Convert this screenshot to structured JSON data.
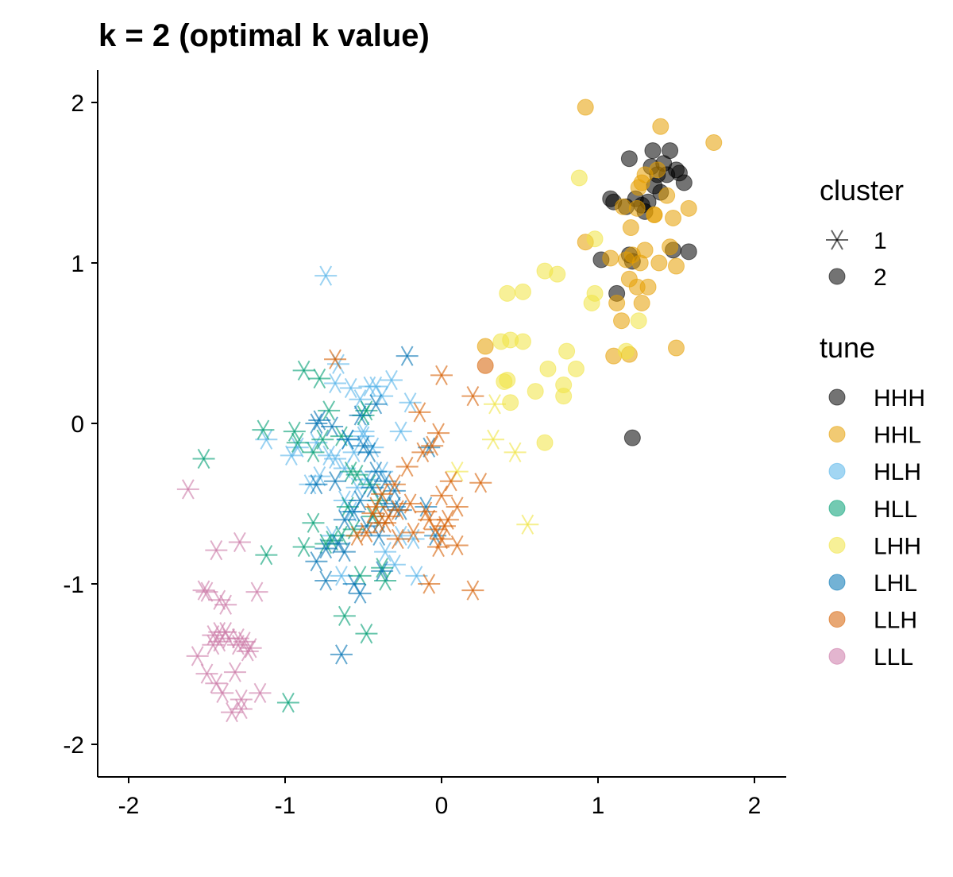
{
  "chart_data": {
    "type": "scatter",
    "title": "k = 2 (optimal k value)",
    "xlabel": "",
    "ylabel": "",
    "xlim": [
      -2.2,
      2.2
    ],
    "ylim": [
      -2.2,
      2.2
    ],
    "x_ticks": [
      "-2",
      "-1",
      "0",
      "1",
      "2"
    ],
    "y_ticks": [
      "2",
      "1",
      "0",
      "-1",
      "-2"
    ],
    "grid": false,
    "legend_position": "right",
    "legends": {
      "cluster": {
        "title": "cluster",
        "items": [
          {
            "label": "1",
            "shape": "asterisk"
          },
          {
            "label": "2",
            "shape": "circle"
          }
        ]
      },
      "tune": {
        "title": "tune",
        "items": [
          {
            "label": "HHH",
            "color": "#000000"
          },
          {
            "label": "HHL",
            "color": "#E69F00"
          },
          {
            "label": "HLH",
            "color": "#56B4E9"
          },
          {
            "label": "HLL",
            "color": "#009E73"
          },
          {
            "label": "LHH",
            "color": "#F0E442"
          },
          {
            "label": "LHL",
            "color": "#0072B2"
          },
          {
            "label": "LLH",
            "color": "#D55E00"
          },
          {
            "label": "LLL",
            "color": "#CC79A7"
          }
        ]
      }
    },
    "series": [
      {
        "tune": "HHH",
        "cluster": "2",
        "x": [
          1.2,
          1.35,
          1.42,
          1.46,
          1.38,
          1.5,
          1.55,
          1.1,
          1.08,
          1.24,
          1.3,
          1.18,
          1.36,
          1.44,
          1.52,
          1.48,
          1.58,
          1.2,
          1.02,
          1.22,
          1.12,
          1.32,
          1.28,
          1.4,
          1.34,
          1.22
        ],
        "y": [
          1.65,
          1.7,
          1.62,
          1.7,
          1.55,
          1.58,
          1.5,
          1.38,
          1.4,
          1.4,
          1.32,
          1.35,
          1.48,
          1.55,
          1.56,
          1.08,
          1.07,
          1.05,
          1.02,
          1.01,
          0.81,
          1.38,
          1.36,
          1.44,
          1.6,
          -0.09
        ]
      },
      {
        "tune": "HHL",
        "cluster": "2",
        "x": [
          0.92,
          1.4,
          1.74,
          1.28,
          1.48,
          1.58,
          1.36,
          1.25,
          1.38,
          1.3,
          1.26,
          1.16,
          1.21,
          0.92,
          1.08,
          1.22,
          1.27,
          1.3,
          1.39,
          1.46,
          1.5,
          1.2,
          1.12,
          1.18,
          1.15,
          1.25,
          1.32,
          1.1,
          1.5,
          1.2,
          0.28,
          1.28,
          1.36,
          1.44
        ],
        "y": [
          1.97,
          1.85,
          1.75,
          1.5,
          1.28,
          1.34,
          1.3,
          1.34,
          1.58,
          1.55,
          1.47,
          1.35,
          1.22,
          1.13,
          1.03,
          1.05,
          1.0,
          1.08,
          1.0,
          1.1,
          0.98,
          0.9,
          0.75,
          1.02,
          0.64,
          0.85,
          0.85,
          0.42,
          0.47,
          0.43,
          0.48,
          0.75,
          1.3,
          1.42
        ]
      },
      {
        "tune": "LHH",
        "cluster": "2",
        "x": [
          0.88,
          0.98,
          0.42,
          0.52,
          0.66,
          0.74,
          0.38,
          0.44,
          0.52,
          0.8,
          0.68,
          0.86,
          0.6,
          0.78,
          0.42,
          0.44,
          0.78,
          0.96,
          1.18,
          1.26,
          0.98,
          0.66,
          0.4
        ],
        "y": [
          1.53,
          1.15,
          0.81,
          0.82,
          0.95,
          0.93,
          0.51,
          0.52,
          0.51,
          0.45,
          0.34,
          0.34,
          0.2,
          0.24,
          0.27,
          0.13,
          0.17,
          0.75,
          0.45,
          0.64,
          0.81,
          -0.12,
          0.26
        ]
      },
      {
        "tune": "LLH",
        "cluster": "2",
        "x": [
          0.28
        ],
        "y": [
          0.36
        ]
      },
      {
        "tune": "LHH",
        "cluster": "1",
        "x": [
          0.34,
          0.33,
          0.47,
          0.55,
          0.1
        ],
        "y": [
          0.12,
          -0.1,
          -0.18,
          -0.63,
          -0.3
        ]
      },
      {
        "tune": "HLH",
        "cluster": "1",
        "x": [
          -0.74,
          -0.66,
          -0.68,
          -0.58,
          -0.52,
          -0.46,
          -0.42,
          -0.32,
          -0.38,
          -0.2,
          -0.26,
          -0.6,
          -0.5,
          -0.44,
          -0.56,
          -0.68,
          -0.72,
          -0.8,
          -0.92,
          -0.96,
          -1.12,
          -0.78,
          -0.84,
          -0.54,
          -0.48,
          -0.38,
          -0.62,
          -0.58,
          -0.4,
          -0.26,
          -0.18,
          -0.3,
          -0.64,
          -0.7,
          -0.36,
          -0.16,
          -0.5,
          -0.62
        ],
        "y": [
          0.92,
          0.37,
          0.25,
          0.22,
          0.15,
          0.23,
          0.23,
          0.27,
          0.17,
          0.13,
          -0.05,
          -0.1,
          -0.08,
          -0.15,
          -0.18,
          -0.22,
          -0.2,
          -0.12,
          -0.15,
          -0.2,
          -0.1,
          -0.33,
          -0.38,
          -0.4,
          -0.35,
          -0.3,
          -0.48,
          -0.55,
          -0.62,
          -0.7,
          -0.72,
          -0.88,
          -0.95,
          -0.7,
          -0.8,
          -0.95,
          -0.05,
          -0.28
        ]
      },
      {
        "tune": "HLL",
        "cluster": "1",
        "x": [
          -0.88,
          -0.78,
          -0.72,
          -0.5,
          -0.48,
          -0.64,
          -0.76,
          -0.92,
          -0.94,
          -1.14,
          -1.52,
          -0.54,
          -0.46,
          -0.6,
          -0.82,
          -0.88,
          -0.7,
          -0.64,
          -0.56,
          -0.44,
          -0.4,
          -0.38,
          -0.36,
          -1.12,
          -0.62,
          -0.48,
          -0.98,
          -0.52,
          -0.58,
          -0.82,
          -0.74
        ],
        "y": [
          0.33,
          0.28,
          0.08,
          0.05,
          0.08,
          -0.08,
          -0.1,
          -0.12,
          -0.05,
          -0.04,
          -0.22,
          -0.32,
          -0.38,
          -0.52,
          -0.62,
          -0.77,
          -0.73,
          -0.7,
          -0.66,
          -0.58,
          -0.48,
          -0.9,
          -0.98,
          -0.82,
          -1.2,
          -1.31,
          -1.74,
          -0.95,
          -0.3,
          -0.18,
          -0.75
        ]
      },
      {
        "tune": "LHL",
        "cluster": "1",
        "x": [
          -0.22,
          -0.42,
          -0.52,
          -0.78,
          -0.8,
          -0.7,
          -0.6,
          -0.5,
          -0.46,
          -0.42,
          -0.36,
          -0.3,
          -0.52,
          -0.56,
          -0.62,
          -0.66,
          -0.74,
          -0.8,
          -0.62,
          -0.4,
          -0.48,
          -0.3,
          -0.26,
          -0.36,
          -0.52,
          -0.64,
          -0.56,
          -0.08,
          -0.1,
          -0.04,
          -0.38,
          -0.44,
          -0.68,
          -0.74,
          -0.8
        ],
        "y": [
          0.42,
          0.12,
          0.05,
          0.02,
          0.0,
          -0.02,
          -0.1,
          -0.14,
          -0.18,
          -0.3,
          -0.36,
          -0.42,
          -0.48,
          -0.55,
          -0.6,
          -0.75,
          -0.78,
          -0.86,
          -0.8,
          -0.7,
          -0.64,
          -0.52,
          -0.54,
          -0.5,
          -1.06,
          -1.44,
          -1.0,
          -0.15,
          -0.52,
          -0.7,
          -0.92,
          -0.4,
          -0.36,
          -0.98,
          -0.38
        ]
      },
      {
        "tune": "LLH",
        "cluster": "1",
        "x": [
          -0.68,
          0.0,
          -0.14,
          0.2,
          0.25,
          -0.02,
          -0.06,
          -0.12,
          -0.22,
          -0.3,
          0.0,
          0.06,
          0.1,
          0.04,
          0.02,
          -0.04,
          -0.1,
          -0.2,
          -0.28,
          -0.34,
          -0.4,
          -0.44,
          -0.48,
          -0.54,
          -0.36,
          -0.28,
          -0.18,
          -0.08,
          0.0,
          0.1,
          0.2,
          -0.08,
          -0.02,
          -0.38,
          -0.42
        ],
        "y": [
          0.4,
          0.3,
          0.07,
          0.17,
          -0.37,
          -0.06,
          -0.14,
          -0.18,
          -0.27,
          -0.38,
          -0.45,
          -0.36,
          -0.52,
          -0.6,
          -0.64,
          -0.66,
          -0.55,
          -0.5,
          -0.54,
          -0.58,
          -0.62,
          -0.56,
          -0.68,
          -0.7,
          -0.62,
          -0.72,
          -0.68,
          -0.6,
          -0.72,
          -0.76,
          -1.04,
          -1.0,
          -0.77,
          -0.44,
          -0.52
        ]
      },
      {
        "tune": "LLL",
        "cluster": "1",
        "x": [
          -1.62,
          -1.44,
          -1.29,
          -1.5,
          -1.52,
          -1.42,
          -1.38,
          -1.18,
          -1.46,
          -1.42,
          -1.38,
          -1.3,
          -1.24,
          -1.56,
          -1.5,
          -1.44,
          -1.4,
          -1.32,
          -1.28,
          -1.34,
          -1.46,
          -1.42,
          -1.3,
          -1.26,
          -1.16,
          -1.28,
          -1.22,
          -1.36
        ],
        "y": [
          -0.41,
          -0.79,
          -0.74,
          -1.05,
          -1.04,
          -1.1,
          -1.13,
          -1.05,
          -1.32,
          -1.36,
          -1.3,
          -1.38,
          -1.42,
          -1.45,
          -1.56,
          -1.62,
          -1.68,
          -1.55,
          -1.72,
          -1.8,
          -1.38,
          -1.3,
          -1.34,
          -1.36,
          -1.68,
          -1.78,
          -1.4,
          -1.34
        ]
      }
    ]
  }
}
